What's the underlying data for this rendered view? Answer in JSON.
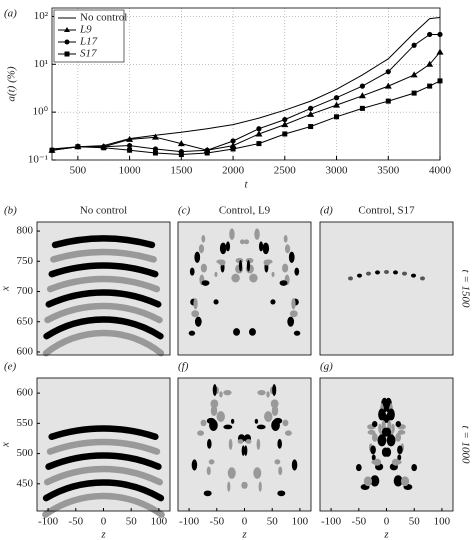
{
  "chart_data": [
    {
      "type": "line",
      "panel_label": "(a)",
      "xlabel": "t",
      "ylabel": "a(t) (%)",
      "x": [
        250,
        500,
        750,
        1000,
        1250,
        1500,
        1750,
        2000,
        2250,
        2500,
        2750,
        3000,
        3250,
        3500,
        3750,
        3900,
        4000
      ],
      "series": [
        {
          "name": "No control",
          "color": "#000000",
          "marker": "none",
          "values": [
            0.17,
            0.19,
            0.2,
            0.28,
            0.33,
            0.38,
            0.45,
            0.55,
            0.75,
            1.1,
            1.7,
            3,
            6,
            13,
            45,
            90,
            95
          ]
        },
        {
          "name": "L9",
          "color": "#000000",
          "marker": "triangle",
          "values": [
            0.16,
            0.19,
            0.19,
            0.27,
            0.3,
            0.22,
            0.16,
            0.2,
            0.35,
            0.55,
            0.9,
            1.4,
            2.2,
            3.5,
            6,
            10,
            18
          ]
        },
        {
          "name": "L17",
          "color": "#000000",
          "marker": "circle",
          "values": [
            0.16,
            0.19,
            0.19,
            0.2,
            0.17,
            0.15,
            0.16,
            0.25,
            0.45,
            0.7,
            1.2,
            2,
            3.5,
            7,
            25,
            42,
            42
          ]
        },
        {
          "name": "S17",
          "color": "#000000",
          "marker": "square",
          "values": [
            0.16,
            0.19,
            0.18,
            0.16,
            0.14,
            0.13,
            0.14,
            0.17,
            0.22,
            0.35,
            0.5,
            0.8,
            1.2,
            1.7,
            2.5,
            3.5,
            4.5
          ]
        }
      ],
      "xlim": [
        250,
        4000
      ],
      "xticks": [
        500,
        1000,
        1500,
        2000,
        2500,
        3000,
        3500,
        4000
      ],
      "ylim": [
        0.1,
        150
      ],
      "log_y": true,
      "yticks": [
        {
          "value": 0.1,
          "label": "10⁻¹"
        },
        {
          "value": 1,
          "label": "10⁰"
        },
        {
          "value": 10,
          "label": "10¹"
        },
        {
          "value": 100,
          "label": "10²"
        }
      ],
      "grid": true,
      "legend": "upper left"
    },
    {
      "type": "contour",
      "panel_label": "(b)",
      "title": "No control",
      "ylabel": "x",
      "ylim": [
        595,
        815
      ],
      "yticks": [
        600,
        650,
        700,
        750,
        800
      ],
      "xlim": [
        -120,
        120
      ],
      "pattern": "arcs"
    },
    {
      "type": "contour",
      "panel_label": "(c)",
      "title": "Control, L9",
      "ylim": [
        595,
        815
      ],
      "xlim": [
        -120,
        120
      ],
      "pattern": "scatter"
    },
    {
      "type": "contour",
      "panel_label": "(d)",
      "title": "Control, S17",
      "row_label": "t = 1500",
      "ylim": [
        595,
        815
      ],
      "xlim": [
        -120,
        120
      ],
      "pattern": "sparse"
    },
    {
      "type": "contour",
      "panel_label": "(e)",
      "ylabel": "x",
      "xlabel": "z",
      "ylim": [
        405,
        625
      ],
      "yticks": [
        450,
        500,
        550,
        600
      ],
      "xlim": [
        -120,
        120
      ],
      "xticks": [
        -100,
        -50,
        0,
        50,
        100
      ],
      "pattern": "arcs"
    },
    {
      "type": "contour",
      "panel_label": "(f)",
      "xlabel": "z",
      "ylim": [
        405,
        625
      ],
      "xlim": [
        -120,
        120
      ],
      "xticks": [
        -100,
        -50,
        0,
        50,
        100
      ],
      "pattern": "scatter"
    },
    {
      "type": "contour",
      "panel_label": "(g)",
      "xlabel": "z",
      "row_label": "t = 1000",
      "ylim": [
        405,
        625
      ],
      "xlim": [
        -120,
        120
      ],
      "xticks": [
        -100,
        -50,
        0,
        50,
        100
      ],
      "pattern": "cone"
    }
  ]
}
